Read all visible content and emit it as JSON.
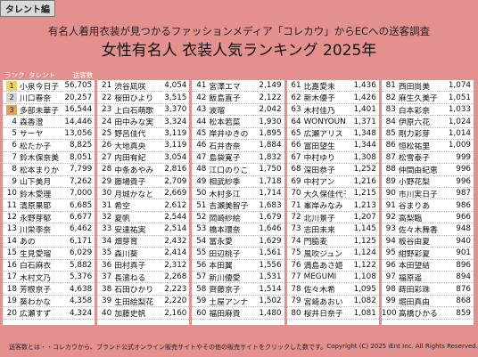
{
  "tag": "タレント編",
  "subtitle": "有名人着用衣装が見つかるファッションメディア「コレカウ」からECへの送客調査",
  "title": "女性有名人 衣装人気ランキング 2025年",
  "col_header": {
    "rank": "ランク",
    "name": "タレント",
    "value": "送客数"
  },
  "columns": [
    [
      {
        "rank": "1",
        "name": "小泉今日子",
        "value": "56,705"
      },
      {
        "rank": "2",
        "name": "川口春奈",
        "value": "20,257"
      },
      {
        "rank": "3",
        "name": "多部未華子",
        "value": "16,544"
      },
      {
        "rank": "4",
        "name": "森香澄",
        "value": "14,446"
      },
      {
        "rank": "5",
        "name": "サーヤ",
        "value": "13,056"
      },
      {
        "rank": "6",
        "name": "松たか子",
        "value": "8,825"
      },
      {
        "rank": "7",
        "name": "鈴木保奈美",
        "value": "8,051"
      },
      {
        "rank": "8",
        "name": "松本まりか",
        "value": "7,799"
      },
      {
        "rank": "9",
        "name": "山下美月",
        "value": "7,262"
      },
      {
        "rank": "10",
        "name": "鈴木愛理",
        "value": "7,000"
      },
      {
        "rank": "11",
        "name": "清原果耶",
        "value": "6,685"
      },
      {
        "rank": "12",
        "name": "永野芽郁",
        "value": "6,677"
      },
      {
        "rank": "13",
        "name": "川栄李奈",
        "value": "6,462"
      },
      {
        "rank": "14",
        "name": "あの",
        "value": "6,171"
      },
      {
        "rank": "15",
        "name": "生見愛瑠",
        "value": "6,029"
      },
      {
        "rank": "16",
        "name": "白石麻衣",
        "value": "5,882"
      },
      {
        "rank": "17",
        "name": "木村文乃",
        "value": "5,376"
      },
      {
        "rank": "18",
        "name": "芳根京子",
        "value": "4,638"
      },
      {
        "rank": "19",
        "name": "葵わかな",
        "value": "4,358"
      },
      {
        "rank": "20",
        "name": "広瀬すず",
        "value": "4,324"
      }
    ],
    [
      {
        "rank": "21",
        "name": "渋谷凪咲",
        "value": "4,054"
      },
      {
        "rank": "22",
        "name": "桜田ひより",
        "value": "3,515"
      },
      {
        "rank": "23",
        "name": "上白石萌歌",
        "value": "3,370"
      },
      {
        "rank": "24",
        "name": "田中みな実",
        "value": "3,324"
      },
      {
        "rank": "25",
        "name": "野呂佳代",
        "value": "3,119"
      },
      {
        "rank": "26",
        "name": "大地真央",
        "value": "3,119"
      },
      {
        "rank": "27",
        "name": "内田有紀",
        "value": "3,054"
      },
      {
        "rank": "28",
        "name": "中条あやみ",
        "value": "2,816"
      },
      {
        "rank": "29",
        "name": "藤場貴子",
        "value": "2,709"
      },
      {
        "rank": "30",
        "name": "月城かなと",
        "value": "2,669"
      },
      {
        "rank": "31",
        "name": "希空",
        "value": "2,612"
      },
      {
        "rank": "32",
        "name": "夏帆",
        "value": "2,544"
      },
      {
        "rank": "33",
        "name": "安達祐実",
        "value": "2,514"
      },
      {
        "rank": "34",
        "name": "畑芽育",
        "value": "2,432"
      },
      {
        "rank": "35",
        "name": "森川葵",
        "value": "2,414"
      },
      {
        "rank": "36",
        "name": "田村真子",
        "value": "2,312"
      },
      {
        "rank": "37",
        "name": "長濱ねる",
        "value": "2,268"
      },
      {
        "rank": "38",
        "name": "石田ひかり",
        "value": "2,223"
      },
      {
        "rank": "39",
        "name": "生田絵梨花",
        "value": "2,220"
      },
      {
        "rank": "40",
        "name": "加藤史帆",
        "value": "2,160"
      }
    ],
    [
      {
        "rank": "41",
        "name": "宮澤エマ",
        "value": "2,149"
      },
      {
        "rank": "42",
        "name": "飯島直子",
        "value": "2,122"
      },
      {
        "rank": "43",
        "name": "波瑠",
        "value": "2,042"
      },
      {
        "rank": "44",
        "name": "松本若菜",
        "value": "1,930"
      },
      {
        "rank": "45",
        "name": "岸井ゆきの",
        "value": "1,895"
      },
      {
        "rank": "46",
        "name": "石井杏奈",
        "value": "1,884"
      },
      {
        "rank": "47",
        "name": "島袋寛子",
        "value": "1,832"
      },
      {
        "rank": "48",
        "name": "江口のりこ",
        "value": "1,750"
      },
      {
        "rank": "49",
        "name": "相武紗季",
        "value": "1,718"
      },
      {
        "rank": "50",
        "name": "木村多江",
        "value": "1,714"
      },
      {
        "rank": "51",
        "name": "吉瀬美智子",
        "value": "1,683"
      },
      {
        "rank": "52",
        "name": "岡崎紗絵",
        "value": "1,679"
      },
      {
        "rank": "53",
        "name": "橋本環奈",
        "value": "1,646"
      },
      {
        "rank": "54",
        "name": "冨永愛",
        "value": "1,629"
      },
      {
        "rank": "55",
        "name": "田辺桃子",
        "value": "1,561"
      },
      {
        "rank": "56",
        "name": "本田翼",
        "value": "1,556"
      },
      {
        "rank": "57",
        "name": "新川優愛",
        "value": "1,531"
      },
      {
        "rank": "58",
        "name": "齊藤京子",
        "value": "1,514"
      },
      {
        "rank": "59",
        "name": "土屋アンナ",
        "value": "1,502"
      },
      {
        "rank": "60",
        "name": "福田麻貴",
        "value": "1,480"
      }
    ],
    [
      {
        "rank": "61",
        "name": "比嘉愛未",
        "value": "1,436"
      },
      {
        "rank": "62",
        "name": "新木優子",
        "value": "1,426"
      },
      {
        "rank": "63",
        "name": "木村佳乃",
        "value": "1,401"
      },
      {
        "rank": "64",
        "name": "WONYOUNG",
        "value": "1,371"
      },
      {
        "rank": "65",
        "name": "広瀬アリス",
        "value": "1,348"
      },
      {
        "rank": "66",
        "name": "冨田望生",
        "value": "1,344"
      },
      {
        "rank": "67",
        "name": "中村ゆり",
        "value": "1,308"
      },
      {
        "rank": "68",
        "name": "深田恭子",
        "value": "1,252"
      },
      {
        "rank": "69",
        "name": "中村アン",
        "value": "1,216"
      },
      {
        "rank": "70",
        "name": "大久保佳代子",
        "value": "1,215"
      },
      {
        "rank": "71",
        "name": "峯岸みなみ",
        "value": "1,213"
      },
      {
        "rank": "72",
        "name": "北川景子",
        "value": "1,207"
      },
      {
        "rank": "73",
        "name": "志田未来",
        "value": "1,145"
      },
      {
        "rank": "74",
        "name": "門脇麦",
        "value": "1,125"
      },
      {
        "rank": "75",
        "name": "風吹ジュン",
        "value": "1,124"
      },
      {
        "rank": "76",
        "name": "満島あさ姫",
        "value": "1,122"
      },
      {
        "rank": "77",
        "name": "MEGUMI",
        "value": "1,108"
      },
      {
        "rank": "78",
        "name": "佐々木希",
        "value": "1,095"
      },
      {
        "rank": "79",
        "name": "宮崎あおい",
        "value": "1,082"
      },
      {
        "rank": "80",
        "name": "桜井日奈子",
        "value": "1,081"
      }
    ],
    [
      {
        "rank": "81",
        "name": "西田尚美",
        "value": "1,074"
      },
      {
        "rank": "82",
        "name": "麻生久美子",
        "value": "1,051"
      },
      {
        "rank": "83",
        "name": "白本彩奈",
        "value": "1,033"
      },
      {
        "rank": "84",
        "name": "伊原六花",
        "value": "1,024"
      },
      {
        "rank": "85",
        "name": "剛力彩芽",
        "value": "1,014"
      },
      {
        "rank": "86",
        "name": "恒松祐里",
        "value": "1,009"
      },
      {
        "rank": "87",
        "name": "松雪泰子",
        "value": "999"
      },
      {
        "rank": "88",
        "name": "仲間由紀恵",
        "value": "996"
      },
      {
        "rank": "89",
        "name": "小野花梨",
        "value": "996"
      },
      {
        "rank": "90",
        "name": "市川実日子",
        "value": "987"
      },
      {
        "rank": "91",
        "name": "谷まりあ",
        "value": "986"
      },
      {
        "rank": "92",
        "name": "高梨臨",
        "value": "966"
      },
      {
        "rank": "93",
        "name": "佐々木舞香",
        "value": "948"
      },
      {
        "rank": "94",
        "name": "板谷由夏",
        "value": "940"
      },
      {
        "rank": "95",
        "name": "紺野彩夏",
        "value": "901"
      },
      {
        "rank": "96",
        "name": "本田望結",
        "value": "896"
      },
      {
        "rank": "97",
        "name": "福原遥",
        "value": "894"
      },
      {
        "rank": "98",
        "name": "蒔田彩珠",
        "value": "876"
      },
      {
        "rank": "99",
        "name": "堀田真由",
        "value": "868"
      },
      {
        "rank": "100",
        "name": "高橋ひかる",
        "value": "859"
      }
    ]
  ],
  "footer_note": "送客数とは・・コレカウから、ブランド公式オンライン販売サイトやその他の販売サイトをクリックした数です。",
  "copyright": "Copyright (C) 2025 iEnt Inc. All Rights Reserved.",
  "colors": {
    "background": "#e4908e",
    "gold": "#f3d25a",
    "silver": "#d4d4d4",
    "bronze": "#e0a05a"
  }
}
